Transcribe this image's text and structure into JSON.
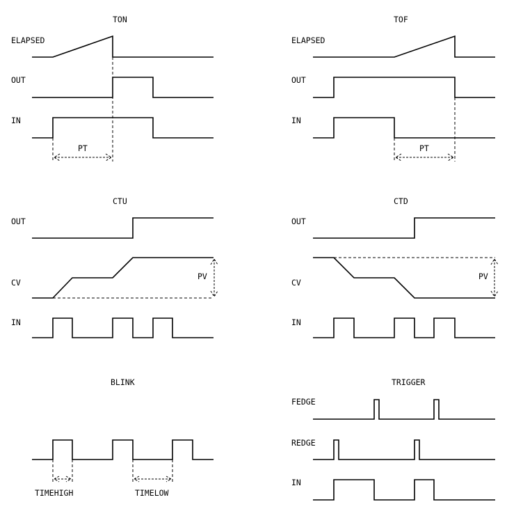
{
  "panels": {
    "ton": {
      "title": "TON",
      "elapsed": "ELAPSED",
      "out": "OUT",
      "in": "IN",
      "pt": "PT"
    },
    "tof": {
      "title": "TOF",
      "elapsed": "ELAPSED",
      "out": "OUT",
      "in": "IN",
      "pt": "PT"
    },
    "ctu": {
      "title": "CTU",
      "out": "OUT",
      "cv": "CV",
      "in": "IN",
      "pv": "PV"
    },
    "ctd": {
      "title": "CTD",
      "out": "OUT",
      "cv": "CV",
      "in": "IN",
      "pv": "PV"
    },
    "blink": {
      "title": "BLINK",
      "timehigh": "TIMEHIGH",
      "timelow": "TIMELOW"
    },
    "trigger": {
      "title": "TRIGGER",
      "fedge": "FEDGE",
      "redge": "REDGE",
      "in": "IN"
    }
  },
  "colors": {
    "line": "#000000",
    "background": "#ffffff"
  }
}
